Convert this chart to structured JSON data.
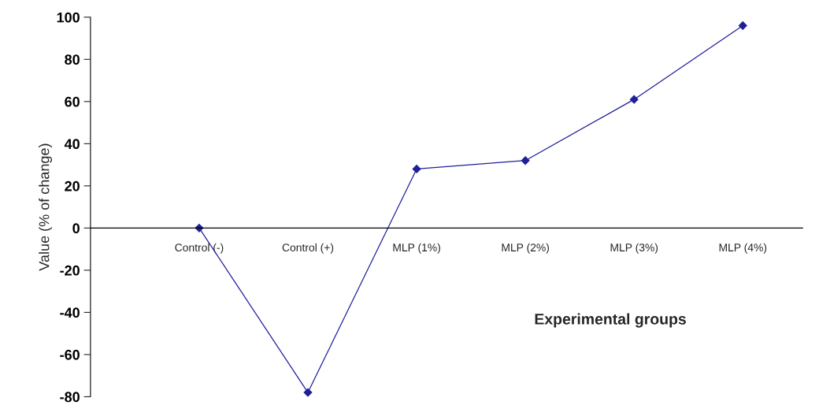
{
  "chart_data": {
    "type": "line",
    "categories": [
      "Control (-)",
      "Control (+)",
      "MLP (1%)",
      "MLP (2%)",
      "MLP (3%)",
      "MLP (4%)"
    ],
    "series": [
      {
        "color": "#1f1f9a",
        "values": [
          0,
          -78,
          28,
          32,
          61,
          96
        ]
      }
    ],
    "xlabel": "Experimental groups",
    "ylabel": "Value (% of change)",
    "ylim": [
      -80,
      100
    ],
    "yticks": [
      -80,
      -60,
      -40,
      -20,
      0,
      20,
      40,
      60,
      80,
      100
    ],
    "marker": "diamond",
    "line_style": "solid",
    "grid": false,
    "legend": false
  }
}
